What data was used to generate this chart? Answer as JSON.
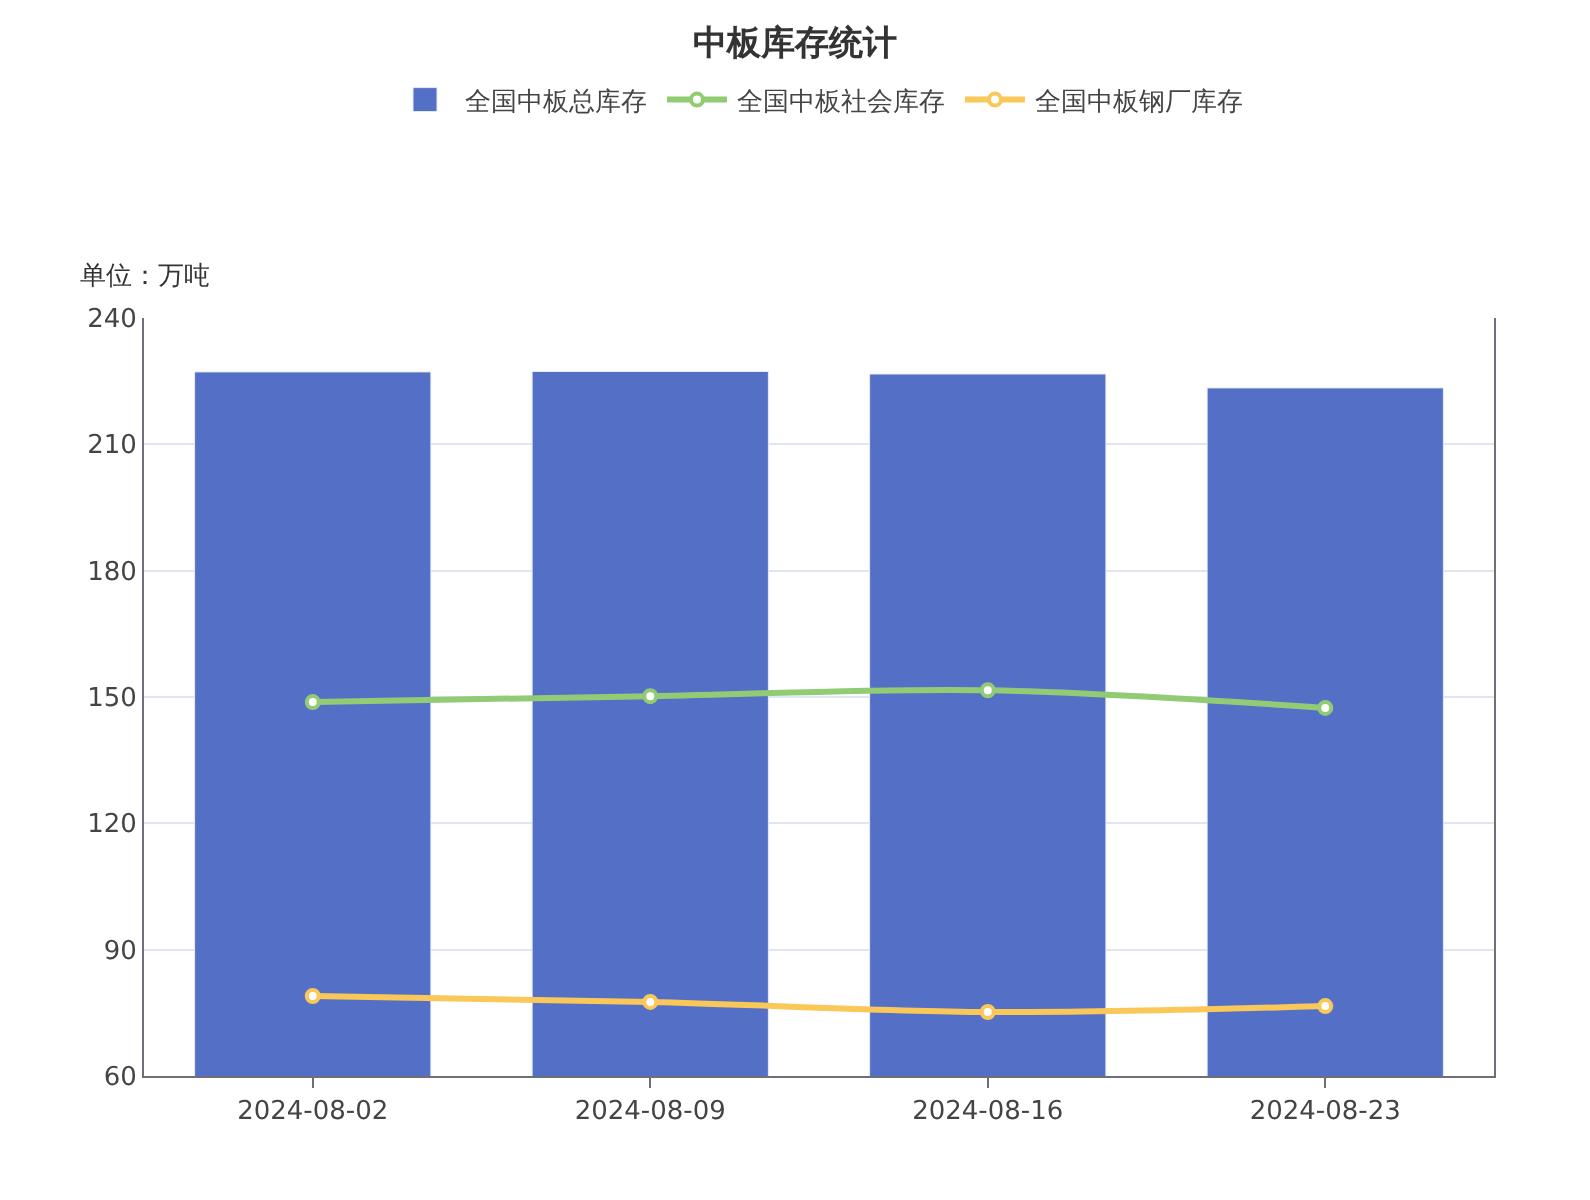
{
  "chart_data": {
    "type": "bar",
    "title": "中板库存统计",
    "ylabel": "单位：万吨",
    "categories": [
      "2024-08-02",
      "2024-08-09",
      "2024-08-16",
      "2024-08-23"
    ],
    "series": [
      {
        "name": "全国中板总库存",
        "color": "#5470c6",
        "values": [
          227.2,
          227.3,
          226.7,
          223.4
        ]
      },
      {
        "name": "全国中板社会库存",
        "type": "line",
        "color": "#91cc75",
        "values": [
          148.8,
          150.2,
          151.6,
          147.4
        ]
      },
      {
        "name": "全国中板钢厂库存",
        "type": "line",
        "color": "#fac858",
        "values": [
          79.0,
          77.6,
          75.2,
          76.6
        ]
      }
    ],
    "ylim": [
      60,
      240
    ],
    "yticks": [
      60,
      90,
      120,
      150,
      180,
      210,
      240
    ],
    "grid": "y",
    "legend": "top",
    "marker": "circle",
    "line_style": "solid"
  }
}
